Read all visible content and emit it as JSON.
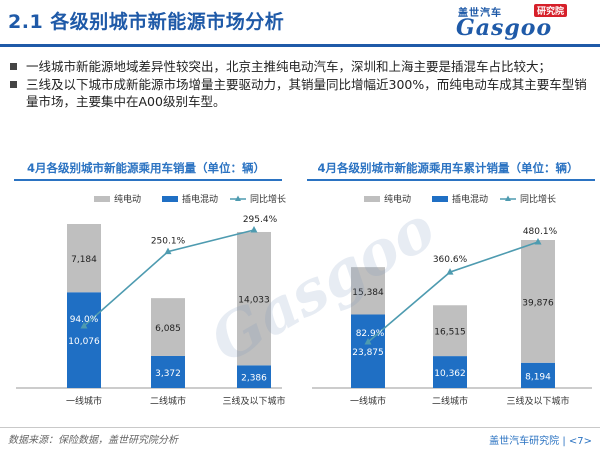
{
  "header": {
    "title": "2.1 各级别城市新能源市场分析",
    "logo_cn": "盖世汽车",
    "logo_research": "研究院",
    "logo_en": "Gasgoo"
  },
  "bullets": [
    "一线城市新能源地域差异性较突出，北京主推纯电动汽车，深圳和上海主要是插混车占比较大；",
    "三线及以下城市成新能源市场增量主要驱动力，其销量同比增幅近300%，而纯电动车成其主要车型销量市场，主要集中在A00级别车型。"
  ],
  "colors": {
    "bev": "#bfbfbf",
    "phev": "#1f6fc4",
    "growth": "#4e9bb0"
  },
  "chart_data": [
    {
      "type": "bar",
      "title": "4月各级别城市新能源乘用车销量（单位：辆）",
      "categories": [
        "一线城市",
        "二线城市",
        "三线及以下城市"
      ],
      "series": [
        {
          "name": "插电混动",
          "values": [
            10076,
            3372,
            2386
          ]
        },
        {
          "name": "纯电动",
          "values": [
            7184,
            6085,
            14033
          ]
        },
        {
          "name": "同比增长",
          "values": [
            94.0,
            250.1,
            295.4
          ],
          "labels": [
            "94.0%",
            "250.1%",
            "295.4%"
          ]
        }
      ],
      "legend": "top"
    },
    {
      "type": "bar",
      "title": "4月各级别城市新能源乘用车累计销量（单位：辆）",
      "categories": [
        "一线城市",
        "二线城市",
        "三线及以下城市"
      ],
      "series": [
        {
          "name": "插电混动",
          "values": [
            23875,
            10362,
            8194
          ]
        },
        {
          "name": "纯电动",
          "values": [
            15384,
            16515,
            39876
          ]
        },
        {
          "name": "同比增长",
          "values": [
            82.9,
            360.6,
            480.1
          ],
          "labels": [
            "82.9%",
            "360.6%",
            "480.1%"
          ]
        }
      ],
      "legend": "top"
    }
  ],
  "footer": {
    "source": "数据来源：保险数据，盖世研究院分析",
    "page": "盖世汽车研究院 | <7>"
  }
}
